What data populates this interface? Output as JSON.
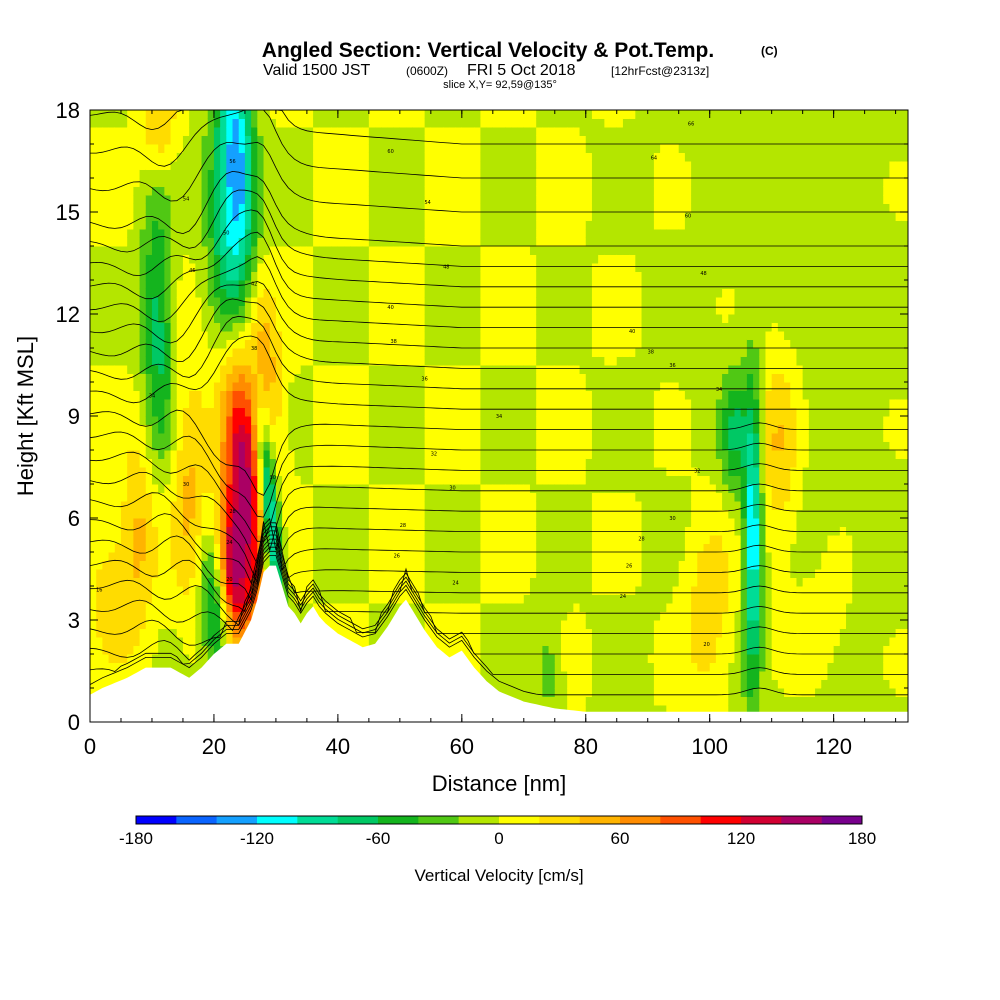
{
  "title": {
    "main": "Angled Section: Vertical Velocity & Pot.Temp.",
    "units_tag": "(C)",
    "valid_prefix": "Valid 1500 JST",
    "utc_tag": "(0600Z)",
    "valid_date": "FRI 5 Oct 2018",
    "forecast_tag": "[12hrFcst@2313z]",
    "slice": "slice X,Y= 92,59@135°"
  },
  "chart_data": {
    "type": "heatmap",
    "title": "Angled Section: Vertical Velocity & Pot.Temp.",
    "xlabel": "Distance [nm]",
    "ylabel": "Height [Kft MSL]",
    "xlim": [
      0,
      132
    ],
    "ylim": [
      0,
      18
    ],
    "x_ticks": [
      0,
      20,
      40,
      60,
      80,
      100,
      120
    ],
    "y_ticks": [
      0,
      3,
      6,
      9,
      12,
      15,
      18
    ],
    "colorbar": {
      "title": "Vertical Velocity [cm/s]",
      "min": -180,
      "max": 180,
      "tick_values": [
        -180,
        -120,
        -60,
        0,
        60,
        120,
        180
      ],
      "tick_labels": [
        "-180",
        "-120",
        "-60",
        "0",
        "60",
        "120",
        "180"
      ],
      "colors": [
        "#0000ff",
        "#0a64ff",
        "#14a0ff",
        "#00ffff",
        "#00dc96",
        "#00c864",
        "#14b41e",
        "#50c814",
        "#b4e600",
        "#ffff00",
        "#ffdc00",
        "#ffb400",
        "#ff8c00",
        "#ff5000",
        "#ff0000",
        "#d20032",
        "#aa0064",
        "#78008c"
      ]
    },
    "terrain": {
      "description": "terrain cross-section heights (Kft) by distance (nm)",
      "x": [
        0,
        2,
        6,
        9,
        13,
        16,
        18,
        20,
        22,
        24,
        26,
        27,
        28,
        29,
        30,
        31,
        32,
        33,
        34,
        35,
        36,
        37,
        38,
        40,
        42,
        44,
        46,
        48,
        50,
        51,
        52,
        54,
        56,
        58,
        60,
        62,
        64,
        66,
        70,
        75,
        80,
        90,
        100,
        110,
        120,
        132
      ],
      "height": [
        0.8,
        1.0,
        1.3,
        1.6,
        1.6,
        1.3,
        1.6,
        2.0,
        2.3,
        2.3,
        3.0,
        3.6,
        4.4,
        4.6,
        4.6,
        4.0,
        3.4,
        3.2,
        2.9,
        3.2,
        3.4,
        3.1,
        2.9,
        2.6,
        2.4,
        2.2,
        2.3,
        2.8,
        3.4,
        3.6,
        3.3,
        2.7,
        2.2,
        1.9,
        2.1,
        1.6,
        1.2,
        0.9,
        0.6,
        0.4,
        0.3,
        0.3,
        0.3,
        0.3,
        0.3,
        0.3
      ]
    },
    "velocity_features": [
      {
        "x": 25,
        "z": 7.0,
        "value": 150,
        "sx": 2.2,
        "sz": 2.8,
        "tilt": -0.35
      },
      {
        "x": 23,
        "z": 4.5,
        "value": 110,
        "sx": 1.6,
        "sz": 1.4,
        "tilt": -0.3
      },
      {
        "x": 28,
        "z": 10.5,
        "value": 60,
        "sx": 1.8,
        "sz": 2.5,
        "tilt": -0.4
      },
      {
        "x": 29,
        "z": 6.2,
        "value": -140,
        "sx": 1.1,
        "sz": 2.3,
        "tilt": -0.45
      },
      {
        "x": 20,
        "z": 3.2,
        "value": -70,
        "sx": 1.4,
        "sz": 1.6,
        "tilt": -0.4
      },
      {
        "x": 24,
        "z": 16.5,
        "value": -120,
        "sx": 2.0,
        "sz": 2.5,
        "tilt": -0.35
      },
      {
        "x": 22,
        "z": 14.0,
        "value": -75,
        "sx": 2.2,
        "sz": 2.5,
        "tilt": -0.3
      },
      {
        "x": 11,
        "z": 11.5,
        "value": -70,
        "sx": 1.8,
        "sz": 3.0,
        "tilt": -0.1
      },
      {
        "x": 11,
        "z": 17.5,
        "value": 45,
        "sx": 2.0,
        "sz": 1.0,
        "tilt": 0
      },
      {
        "x": 8,
        "z": 5.5,
        "value": 45,
        "sx": 2.2,
        "sz": 2.0,
        "tilt": 0.1
      },
      {
        "x": 16,
        "z": 7.0,
        "value": 45,
        "sx": 2.2,
        "sz": 2.5,
        "tilt": 0
      },
      {
        "x": 3,
        "z": 3.8,
        "value": 30,
        "sx": 2.5,
        "sz": 1.5,
        "tilt": 0
      },
      {
        "x": 107,
        "z": 5.5,
        "value": -120,
        "sx": 1.0,
        "sz": 3.0,
        "tilt": 0
      },
      {
        "x": 111,
        "z": 8.0,
        "value": 45,
        "sx": 2.5,
        "sz": 2.5,
        "tilt": 0
      },
      {
        "x": 100,
        "z": 3.3,
        "value": 40,
        "sx": 3.0,
        "sz": 2.0,
        "tilt": 0
      },
      {
        "x": 104,
        "z": 8.5,
        "value": -55,
        "sx": 1.5,
        "sz": 1.2,
        "tilt": 0
      },
      {
        "x": 118,
        "z": 2.5,
        "value": 20,
        "sx": 4.0,
        "sz": 1.5,
        "tilt": 0
      },
      {
        "x": 74,
        "z": 1.5,
        "value": -30,
        "sx": 1.5,
        "sz": 1.2,
        "tilt": 0
      }
    ],
    "isentropes": {
      "description": "potential temperature contour lines (C), base height in Kft at the right edge",
      "levels": [
        10,
        12,
        14,
        16,
        18,
        20,
        22,
        24,
        26,
        28,
        30,
        32,
        34,
        36,
        38,
        40,
        42,
        44,
        46,
        48,
        50,
        52,
        54,
        56,
        58,
        60
      ],
      "base_heights": [
        0.8,
        1.4,
        2.0,
        2.6,
        3.2,
        3.8,
        4.4,
        5.0,
        5.6,
        6.2,
        6.8,
        7.4,
        8.0,
        8.6,
        9.2,
        9.8,
        10.4,
        11.0,
        11.6,
        12.2,
        12.8,
        13.4,
        14.0,
        15.0,
        16.0,
        17.0
      ]
    },
    "contour_labels": [
      {
        "x": 1.5,
        "z": 3.9,
        "text": "16"
      },
      {
        "x": 22.5,
        "z": 4.2,
        "text": "20"
      },
      {
        "x": 22.5,
        "z": 5.3,
        "text": "24"
      },
      {
        "x": 23,
        "z": 6.2,
        "text": "28"
      },
      {
        "x": 29.5,
        "z": 7.2,
        "text": "30"
      },
      {
        "x": 15.5,
        "z": 7.0,
        "text": "30"
      },
      {
        "x": 10,
        "z": 9.6,
        "text": "34"
      },
      {
        "x": 26.5,
        "z": 11.0,
        "text": "38"
      },
      {
        "x": 26.5,
        "z": 12.9,
        "text": "42"
      },
      {
        "x": 16.5,
        "z": 13.3,
        "text": "46"
      },
      {
        "x": 22,
        "z": 14.4,
        "text": "50"
      },
      {
        "x": 15.5,
        "z": 15.4,
        "text": "54"
      },
      {
        "x": 23,
        "z": 16.5,
        "text": "56"
      },
      {
        "x": 48.5,
        "z": 16.8,
        "text": "60"
      },
      {
        "x": 54.5,
        "z": 15.3,
        "text": "54"
      },
      {
        "x": 57.5,
        "z": 13.4,
        "text": "48"
      },
      {
        "x": 48.5,
        "z": 12.2,
        "text": "40"
      },
      {
        "x": 49,
        "z": 11.2,
        "text": "38"
      },
      {
        "x": 54,
        "z": 10.1,
        "text": "36"
      },
      {
        "x": 66,
        "z": 9.0,
        "text": "34"
      },
      {
        "x": 55.5,
        "z": 7.9,
        "text": "32"
      },
      {
        "x": 58.5,
        "z": 6.9,
        "text": "30"
      },
      {
        "x": 50.5,
        "z": 5.8,
        "text": "28"
      },
      {
        "x": 49.5,
        "z": 4.9,
        "text": "26"
      },
      {
        "x": 59,
        "z": 4.1,
        "text": "24"
      },
      {
        "x": 91,
        "z": 16.6,
        "text": "64"
      },
      {
        "x": 97,
        "z": 17.6,
        "text": "66"
      },
      {
        "x": 96.5,
        "z": 14.9,
        "text": "60"
      },
      {
        "x": 99,
        "z": 13.2,
        "text": "48"
      },
      {
        "x": 87.5,
        "z": 11.5,
        "text": "40"
      },
      {
        "x": 90.5,
        "z": 10.9,
        "text": "38"
      },
      {
        "x": 94,
        "z": 10.5,
        "text": "36"
      },
      {
        "x": 101.5,
        "z": 9.8,
        "text": "34"
      },
      {
        "x": 98,
        "z": 7.4,
        "text": "32"
      },
      {
        "x": 94,
        "z": 6.0,
        "text": "30"
      },
      {
        "x": 89,
        "z": 5.4,
        "text": "28"
      },
      {
        "x": 87,
        "z": 4.6,
        "text": "26"
      },
      {
        "x": 86,
        "z": 3.7,
        "text": "24"
      },
      {
        "x": 99.5,
        "z": 2.3,
        "text": "20"
      }
    ]
  }
}
